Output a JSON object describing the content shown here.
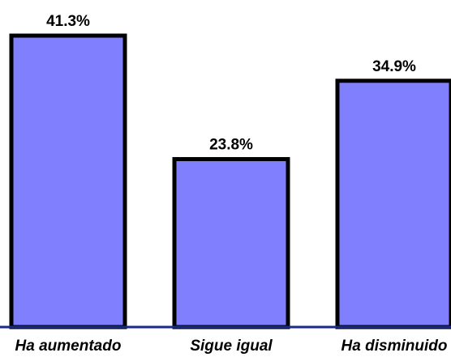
{
  "chart_data": {
    "type": "bar",
    "categories": [
      "Ha aumentado",
      "Sigue igual",
      "Ha disminuido"
    ],
    "values": [
      41.3,
      23.8,
      34.9
    ],
    "data_labels": [
      "41.3%",
      "23.8%",
      "34.9%"
    ],
    "title": "",
    "xlabel": "",
    "ylabel": "",
    "ylim": [
      0,
      41.3
    ],
    "grid": false,
    "legend": "none",
    "colors": {
      "bar_fill": "#8080ff",
      "bar_stroke": "#000000",
      "axis": "#1a2a8a"
    }
  }
}
